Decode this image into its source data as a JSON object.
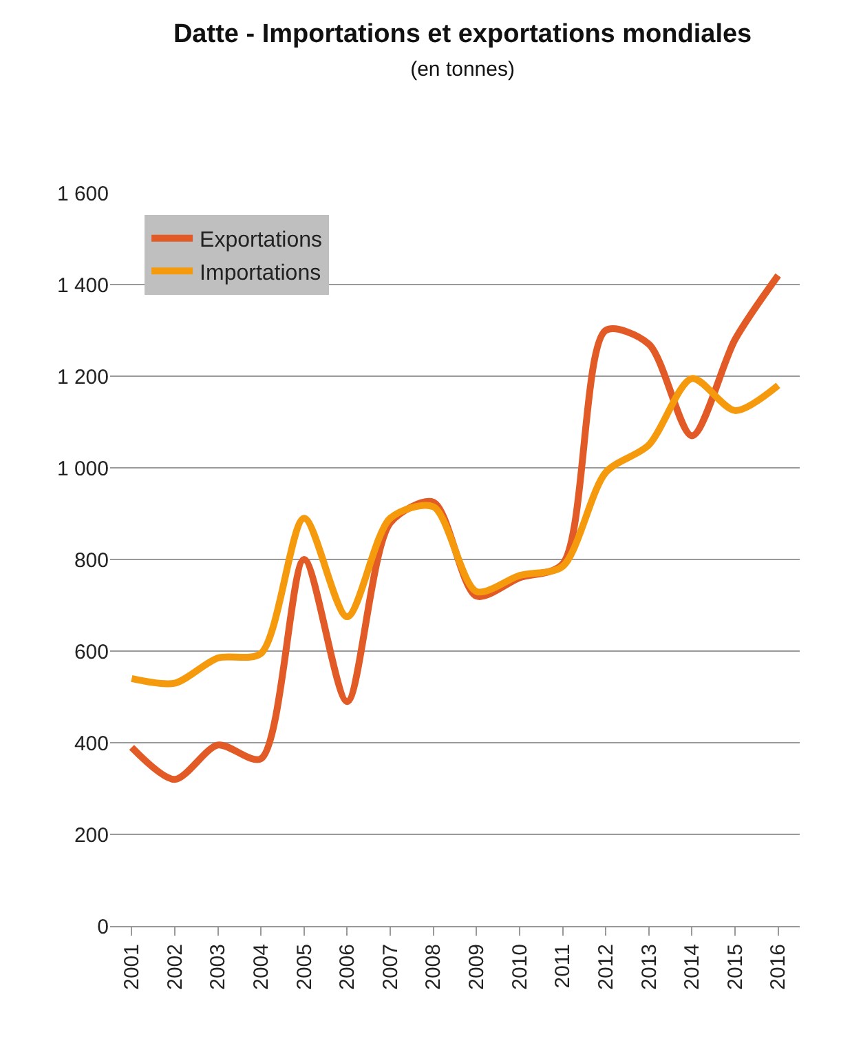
{
  "chart_data": {
    "type": "line",
    "title": "Datte - Importations et exportations mondiales",
    "subtitle": "(en tonnes)",
    "categories": [
      "2001",
      "2002",
      "2003",
      "2004",
      "2005",
      "2006",
      "2007",
      "2008",
      "2009",
      "2010",
      "2011",
      "2012",
      "2013",
      "2014",
      "2015",
      "2016"
    ],
    "series": [
      {
        "name": "Exportations",
        "color": "#e25a26",
        "values": [
          390,
          320,
          395,
          365,
          800,
          490,
          880,
          925,
          720,
          760,
          790,
          1300,
          1270,
          1070,
          1280,
          1420
        ]
      },
      {
        "name": "Importations",
        "color": "#f59a0c",
        "values": [
          540,
          530,
          585,
          595,
          890,
          675,
          890,
          915,
          730,
          765,
          785,
          990,
          1050,
          1195,
          1125,
          1180
        ]
      }
    ],
    "ylim": [
      0,
      1600
    ],
    "yticks": [
      {
        "value": 0,
        "label": "0"
      },
      {
        "value": 200,
        "label": "200"
      },
      {
        "value": 400,
        "label": "400"
      },
      {
        "value": 600,
        "label": "600"
      },
      {
        "value": 800,
        "label": "800"
      },
      {
        "value": 1000,
        "label": "1 000"
      },
      {
        "value": 1200,
        "label": "1 200"
      },
      {
        "value": 1400,
        "label": "1 400"
      },
      {
        "value": 1600,
        "label": "1 600"
      }
    ],
    "grid": "y",
    "legend": "top left",
    "marker": "none",
    "line_style": "solid"
  }
}
